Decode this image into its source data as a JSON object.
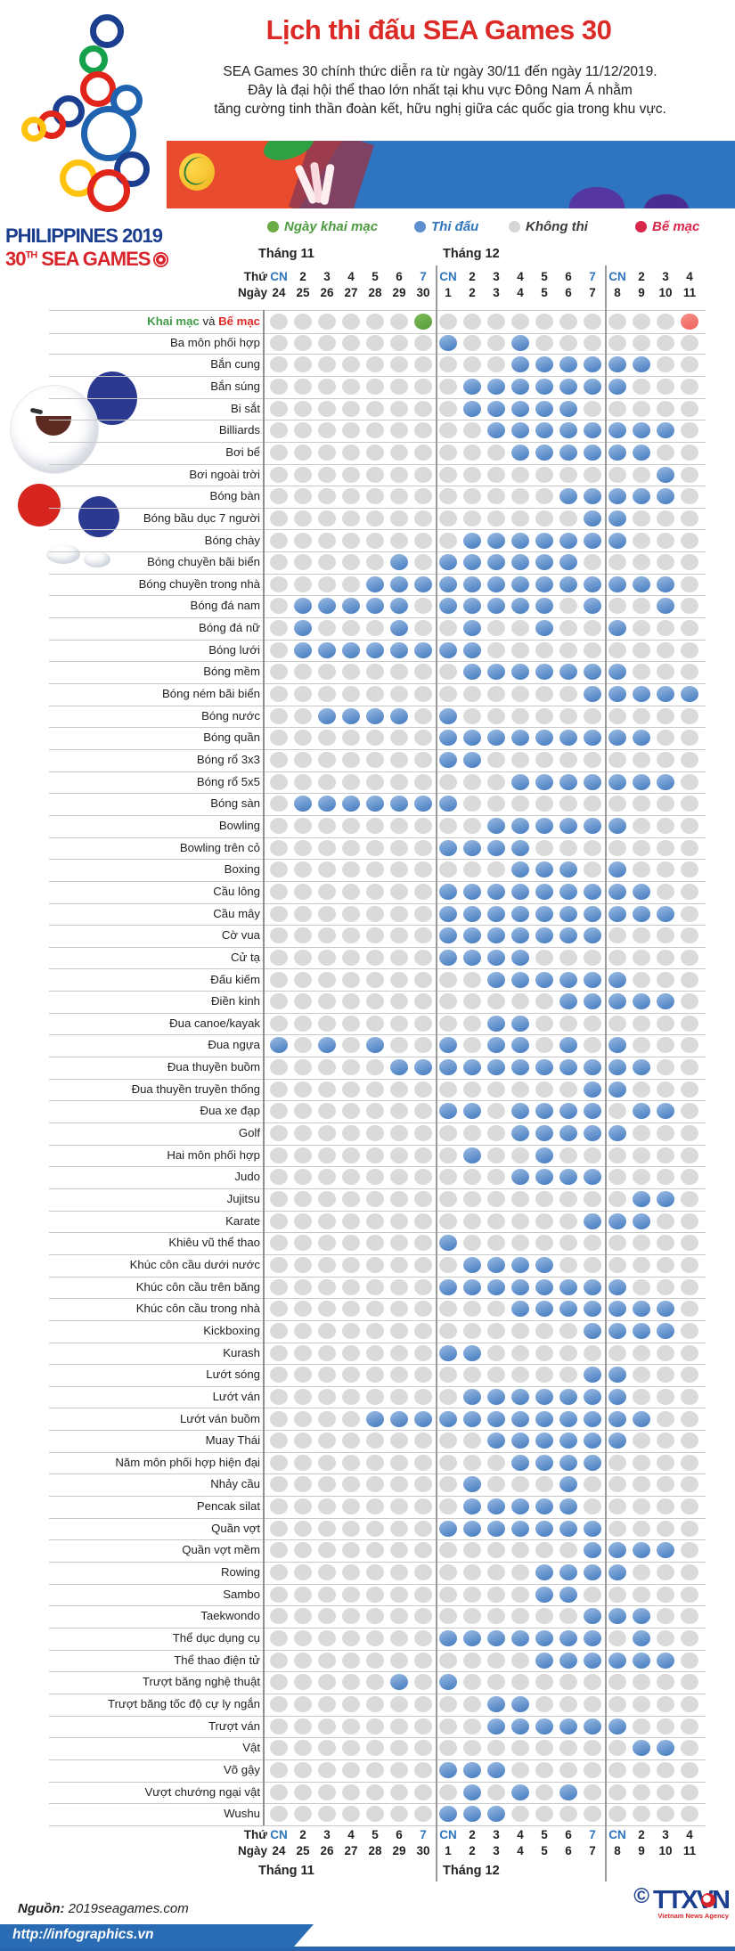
{
  "header": {
    "title": "Lịch thi đấu SEA Games 30",
    "desc": [
      "SEA Games 30 chính thức diễn ra từ ngày 30/11 đến ngày 11/12/2019.",
      "Đây là đại hội thể thao lớn nhất tại khu vực Đông Nam Á nhằm",
      "tăng cường tinh thần đoàn kết, hữu nghị giữa các quốc gia trong khu vực."
    ]
  },
  "logo": {
    "line1": "PHILIPPINES 2019",
    "line2_num": "30",
    "line2_sup": "TH",
    "line2_rest": " SEA GAMES"
  },
  "legend": {
    "items": [
      {
        "label": "Ngày khai mạc",
        "dot_color": "#6aaa47",
        "text_color": "#4c9b3f"
      },
      {
        "label": "Thi đấu",
        "dot_color": "#5b8fce",
        "text_color": "#2e75bd"
      },
      {
        "label": "Không thi",
        "dot_color": "#d5d5d5",
        "text_color": "#3a3a3a"
      },
      {
        "label": "Bế mạc",
        "dot_color": "#d8274b",
        "text_color": "#d8274b"
      }
    ]
  },
  "chart_data": {
    "type": "heatmap",
    "title": "Lịch thi đấu SEA Games 30",
    "legend_map": {
      "G": "Ngày khai mạc",
      "B": "Thi đấu",
      ".": "Không thi",
      "R": "Bế mạc"
    },
    "columns": {
      "thu_label": "Thứ",
      "ngay_label": "Ngày",
      "month1": "Tháng 11",
      "month2": "Tháng 12",
      "weekdays": [
        "CN",
        "2",
        "3",
        "4",
        "5",
        "6",
        "7",
        "CN",
        "2",
        "3",
        "4",
        "5",
        "6",
        "7",
        "CN",
        "2",
        "3",
        "4"
      ],
      "dates": [
        "24",
        "25",
        "26",
        "27",
        "28",
        "29",
        "30",
        "1",
        "2",
        "3",
        "4",
        "5",
        "6",
        "7",
        "8",
        "9",
        "10",
        "11"
      ],
      "group_breaks": [
        7,
        14
      ]
    },
    "rows": [
      {
        "label": "Khai mạc và Bế mạc",
        "parts": [
          {
            "t": "Khai mạc",
            "c": "lp-green"
          },
          {
            "t": " và ",
            "c": "lp-dark"
          },
          {
            "t": "Bế mạc",
            "c": "lp-red"
          }
        ],
        "pattern": "......G..........R"
      },
      {
        "label": "Ba môn phối hợp",
        "pattern": ".......B..B......."
      },
      {
        "label": "Bắn cung",
        "pattern": "..........BBBBBB.."
      },
      {
        "label": "Bắn súng",
        "pattern": "........BBBBBBB..."
      },
      {
        "label": "Bi sắt",
        "pattern": "........BBBBB....."
      },
      {
        "label": "Billiards",
        "pattern": ".........BBBBBBBB."
      },
      {
        "label": "Bơi bể",
        "pattern": "..........BBBBBB.."
      },
      {
        "label": "Bơi ngoài trời",
        "pattern": "................B."
      },
      {
        "label": "Bóng bàn",
        "pattern": "............BBBBB."
      },
      {
        "label": "Bóng bầu dục 7 người",
        "pattern": ".............BB..."
      },
      {
        "label": "Bóng chày",
        "pattern": "........BBBBBBB..."
      },
      {
        "label": "Bóng chuyền bãi biển",
        "pattern": ".....B.BBBBBB....."
      },
      {
        "label": "Bóng chuyền trong nhà",
        "pattern": "....BBBBBBBBBBBBB."
      },
      {
        "label": "Bóng đá nam",
        "pattern": ".BBBBB.BBBBB.B..B."
      },
      {
        "label": "Bóng đá nữ",
        "pattern": ".B...B..B..B..B..."
      },
      {
        "label": "Bóng lưới",
        "pattern": ".BBBBBBBB........."
      },
      {
        "label": "Bóng mềm",
        "pattern": "........BBBBBBB..."
      },
      {
        "label": "Bóng ném bãi biển",
        "pattern": ".............BBBBB"
      },
      {
        "label": "Bóng nước",
        "pattern": "..BBBB.B.........."
      },
      {
        "label": "Bóng quần",
        "pattern": ".......BBBBBBBBB.."
      },
      {
        "label": "Bóng rổ 3x3",
        "pattern": ".......BB........."
      },
      {
        "label": "Bóng rổ 5x5",
        "pattern": "..........BBBBBBB."
      },
      {
        "label": "Bóng sàn",
        "pattern": ".BBBBBBB.........."
      },
      {
        "label": "Bowling",
        "pattern": ".........BBBBBB..."
      },
      {
        "label": "Bowling trên cỏ",
        "pattern": ".......BBBB......."
      },
      {
        "label": "Boxing",
        "pattern": "..........BBB.B..."
      },
      {
        "label": "Cầu lông",
        "pattern": ".......BBBBBBBBB.."
      },
      {
        "label": "Cầu mây",
        "pattern": ".......BBBBBBBBBB."
      },
      {
        "label": "Cờ vua",
        "pattern": ".......BBBBBBB...."
      },
      {
        "label": "Cử tạ",
        "pattern": ".......BBBB......."
      },
      {
        "label": "Đấu kiếm",
        "pattern": ".........BBBBBB..."
      },
      {
        "label": "Điền kinh",
        "pattern": "............BBBBB."
      },
      {
        "label": "Đua canoe/kayak",
        "pattern": ".........BB......."
      },
      {
        "label": "Đua ngựa",
        "pattern": "B.B.B..B.BB.B.B..."
      },
      {
        "label": "Đua thuyền buồm",
        "pattern": ".....BBBBBBBBBBB.."
      },
      {
        "label": "Đua thuyền truyền thống",
        "pattern": ".............BB..."
      },
      {
        "label": "Đua xe đạp",
        "pattern": ".......BB.BBBB.BB."
      },
      {
        "label": "Golf",
        "pattern": "..........BBBBB..."
      },
      {
        "label": "Hai môn phối hợp",
        "pattern": "........B..B......"
      },
      {
        "label": "Judo",
        "pattern": "..........BBBB...."
      },
      {
        "label": "Jujitsu",
        "pattern": "...............BB."
      },
      {
        "label": "Karate",
        "pattern": ".............BBB.."
      },
      {
        "label": "Khiêu vũ thể thao",
        "pattern": ".......B.........."
      },
      {
        "label": "Khúc côn cầu dưới nước",
        "pattern": "........BBBB......"
      },
      {
        "label": "Khúc côn cầu trên băng",
        "pattern": ".......BBBBBBBB..."
      },
      {
        "label": "Khúc côn cầu trong nhà",
        "pattern": "..........BBBBBBB."
      },
      {
        "label": "Kickboxing",
        "pattern": ".............BBBB."
      },
      {
        "label": "Kurash",
        "pattern": ".......BB........."
      },
      {
        "label": "Lướt sóng",
        "pattern": ".............BB..."
      },
      {
        "label": "Lướt ván",
        "pattern": "........BBBBBBB..."
      },
      {
        "label": "Lướt ván buồm",
        "pattern": "....BBBBBBBBBBBB.."
      },
      {
        "label": "Muay Thái",
        "pattern": ".........BBBBBB..."
      },
      {
        "label": "Năm môn phối hợp hiện đại",
        "pattern": "..........BBBB...."
      },
      {
        "label": "Nhảy cầu",
        "pattern": "........B...B....."
      },
      {
        "label": "Pencak silat",
        "pattern": "........BBBBB....."
      },
      {
        "label": "Quần vợt",
        "pattern": ".......BBBBBBB...."
      },
      {
        "label": "Quần vợt mềm",
        "pattern": ".............BBBB."
      },
      {
        "label": "Rowing",
        "pattern": "...........BBBB..."
      },
      {
        "label": "Sambo",
        "pattern": "...........BB....."
      },
      {
        "label": "Taekwondo",
        "pattern": ".............BBB.."
      },
      {
        "label": "Thể dục dụng cụ",
        "pattern": ".......BBBBBBB.B.."
      },
      {
        "label": "Thể thao điện tử",
        "pattern": "...........BBBBBB."
      },
      {
        "label": "Trượt băng nghệ thuật",
        "pattern": ".....B.B.........."
      },
      {
        "label": "Trượt băng tốc độ cự ly ngắn",
        "pattern": ".........BB......."
      },
      {
        "label": "Trượt ván",
        "pattern": ".........BBBBBB..."
      },
      {
        "label": "Vật",
        "pattern": "...............BB."
      },
      {
        "label": "Võ gậy",
        "pattern": ".......BBB........"
      },
      {
        "label": "Vượt chướng ngại vật",
        "pattern": "........B.B.B....."
      },
      {
        "label": "Wushu",
        "pattern": ".......BBB........"
      }
    ]
  },
  "colors": {
    "title_red": "#dc2a27",
    "dot_blue": "#5b8fce",
    "dot_gray": "#dadada",
    "dot_green": "#6aaa47",
    "dot_salmon": "#f4736e",
    "header_blue": "#2e75bd",
    "navy": "#1b3e8f"
  },
  "footer": {
    "source_label": "Nguồn:",
    "source_value": "2019seagames.com",
    "copyright": "©",
    "agency": "TTXVN",
    "agency_sub": "Vietnam News Agency",
    "url": "http://infographics.vn"
  }
}
